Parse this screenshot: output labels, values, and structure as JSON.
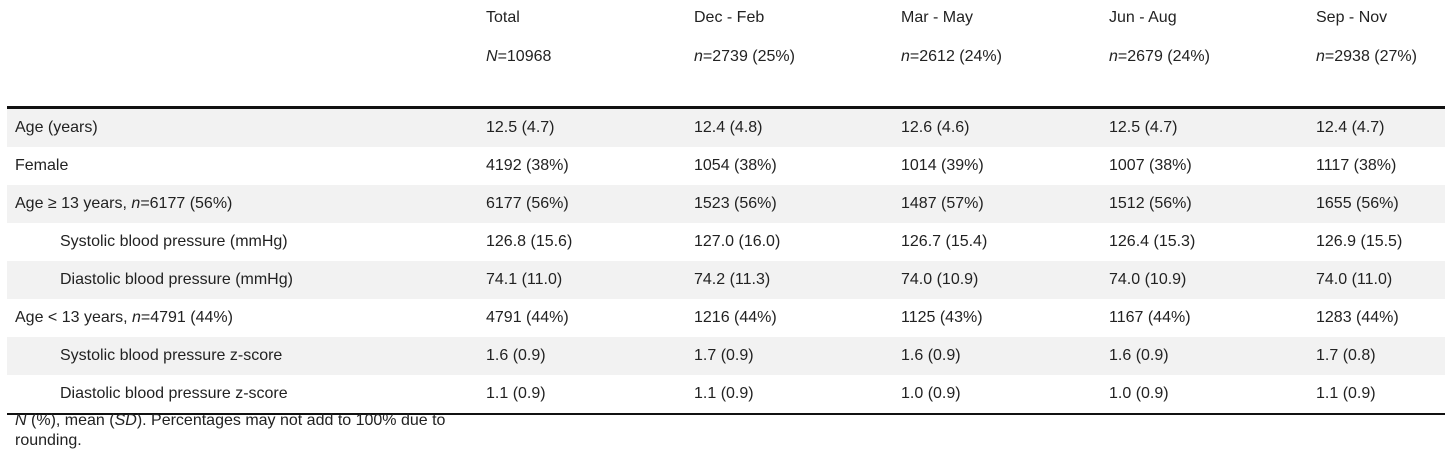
{
  "header": {
    "columns": [
      {
        "title": "Total",
        "n_prefix": "N",
        "n_suffix": "=10968"
      },
      {
        "title": "Dec - Feb",
        "n_prefix": "n",
        "n_suffix": "=2739 (25%)"
      },
      {
        "title": "Mar - May",
        "n_prefix": "n",
        "n_suffix": "=2612 (24%)"
      },
      {
        "title": "Jun - Aug",
        "n_prefix": "n",
        "n_suffix": "=2679 (24%)"
      },
      {
        "title": "Sep - Nov",
        "n_prefix": "n",
        "n_suffix": "=2938 (27%)"
      }
    ]
  },
  "rows": [
    {
      "label": "Age (years)",
      "values": [
        "12.5 (4.7)",
        "12.4 (4.8)",
        "12.6 (4.6)",
        "12.5 (4.7)",
        "12.4 (4.7)"
      ]
    },
    {
      "label": "Female",
      "values": [
        "4192 (38%)",
        "1054 (38%)",
        "1014 (39%)",
        "1007 (38%)",
        "1117 (38%)"
      ]
    },
    {
      "label_pre": "Age ≥ 13 years, ",
      "label_italic": "n",
      "label_post": "=6177 (56%)",
      "values": [
        "6177 (56%)",
        "1523 (56%)",
        "1487 (57%)",
        "1512 (56%)",
        "1655 (56%)"
      ]
    },
    {
      "label": "Systolic blood pressure (mmHg)",
      "values": [
        "126.8 (15.6)",
        "127.0 (16.0)",
        "126.7 (15.4)",
        "126.4 (15.3)",
        "126.9 (15.5)"
      ]
    },
    {
      "label": "Diastolic blood pressure (mmHg)",
      "values": [
        "74.1 (11.0)",
        "74.2 (11.3)",
        "74.0 (10.9)",
        "74.0 (10.9)",
        "74.0 (11.0)"
      ]
    },
    {
      "label_pre": "Age < 13 years, ",
      "label_italic": "n",
      "label_post": "=4791 (44%)",
      "values": [
        "4791 (44%)",
        "1216 (44%)",
        "1125 (43%)",
        "1167 (44%)",
        "1283 (44%)"
      ]
    },
    {
      "label": "Systolic blood pressure z-score",
      "values": [
        "1.6 (0.9)",
        "1.7 (0.9)",
        "1.6 (0.9)",
        "1.6 (0.9)",
        "1.7 (0.8)"
      ]
    },
    {
      "label": "Diastolic blood pressure z-score",
      "values": [
        "1.1 (0.9)",
        "1.1 (0.9)",
        "1.0 (0.9)",
        "1.0 (0.9)",
        "1.1 (0.9)"
      ]
    }
  ],
  "footnote": {
    "n_italic": "N",
    "part1": " (%), mean (",
    "sd_italic": "SD",
    "part2": "). Percentages may not add to 100% due to rounding."
  }
}
